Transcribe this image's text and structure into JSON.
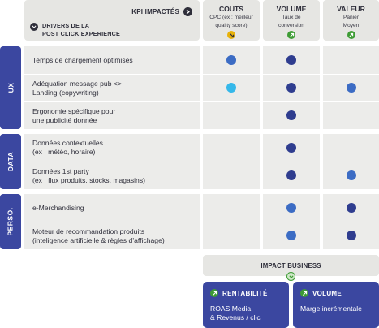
{
  "header": {
    "kpi_label": "KPI IMPACTÉS",
    "drivers_label_1": "DRIVERS DE LA",
    "drivers_label_2": "POST CLICK EXPERIENCE"
  },
  "columns": [
    {
      "title": "COUTS",
      "sub1": "CPC (ex : meilleur",
      "sub2": "quality score)",
      "badge_color": "#e8b20a"
    },
    {
      "title": "VOLUME",
      "sub1": "Taux de",
      "sub2": "conversion",
      "badge_color": "#3e9c35"
    },
    {
      "title": "VALEUR",
      "sub1": "Panier",
      "sub2": "Moyen",
      "badge_color": "#3e9c35"
    }
  ],
  "categories": [
    {
      "label": "UX"
    },
    {
      "label": "DATA"
    },
    {
      "label": "PERSO."
    }
  ],
  "rows": [
    {
      "line1": "Temps de chargement optimisés",
      "line2": "",
      "dots": [
        "#3c6cc4",
        "#2f3d8f",
        ""
      ]
    },
    {
      "line1": "Adéquation message pub <>",
      "line2": "Landing (copywriting)",
      "dots": [
        "#35b8ea",
        "#2f3d8f",
        "#3c6cc4"
      ]
    },
    {
      "line1": "Ergonomie spécifique pour",
      "line2": "une publicité donnée",
      "dots": [
        "",
        "#2f3d8f",
        ""
      ]
    },
    {
      "line1": "Données contextuelles",
      "line2": "(ex : météo, horaire)",
      "dots": [
        "",
        "#2f3d8f",
        ""
      ]
    },
    {
      "line1": "Données 1st party",
      "line2": "(ex : flux produits, stocks, magasins)",
      "dots": [
        "",
        "#2f3d8f",
        "#3c6cc4"
      ]
    },
    {
      "line1": "e-Merchandising",
      "line2": "",
      "dots": [
        "",
        "#3c6cc4",
        "#2f3d8f"
      ]
    },
    {
      "line1": "Moteur de recommandation produits",
      "line2": "(inteligence artificielle & règles d’affichage)",
      "dots": [
        "",
        "#3c6cc4",
        "#2f3d8f"
      ]
    }
  ],
  "impact": {
    "label": "IMPACT BUSINESS",
    "cards": [
      {
        "title": "RENTABILITÉ",
        "line1": "ROAS Media",
        "line2": "& Revenus / clic"
      },
      {
        "title": "VOLUME",
        "line1": "Marge incrémentale",
        "line2": ""
      }
    ]
  },
  "colors": {
    "category_bg": "#3b47a0",
    "cell_bg": "#ececea",
    "header_bg": "#e6e6e3",
    "chevron_green": "#3e9c35"
  }
}
